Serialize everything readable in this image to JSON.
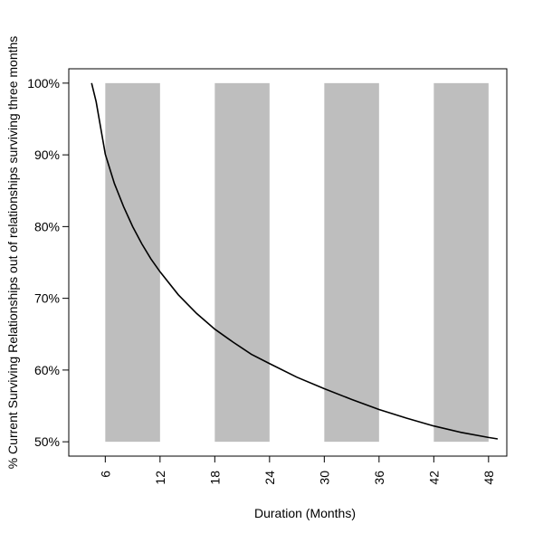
{
  "chart_data": {
    "type": "line",
    "title": "",
    "xlabel": "Duration (Months)",
    "ylabel": "% Current Surviving Relationships out of relationships surviving three months",
    "xlim": [
      2,
      50
    ],
    "ylim": [
      48,
      102
    ],
    "x_ticks": [
      6,
      12,
      18,
      24,
      30,
      36,
      42,
      48
    ],
    "y_ticks": [
      50,
      60,
      70,
      80,
      90,
      100
    ],
    "y_tick_labels": [
      "50%",
      "60%",
      "70%",
      "80%",
      "90%",
      "100%"
    ],
    "shaded_bands": [
      [
        6,
        12
      ],
      [
        18,
        24
      ],
      [
        30,
        36
      ],
      [
        42,
        48
      ]
    ],
    "shaded_band_range": [
      50,
      100
    ],
    "series": [
      {
        "x": [
          4.5,
          5,
          6,
          7,
          8,
          9,
          10,
          11,
          12,
          14,
          16,
          18,
          20,
          22,
          24,
          27,
          30,
          33,
          36,
          39,
          42,
          45,
          48,
          49
        ],
        "y": [
          100,
          97.4,
          90.1,
          86.0,
          82.8,
          80.0,
          77.6,
          75.5,
          73.7,
          70.5,
          67.9,
          65.7,
          63.9,
          62.2,
          60.9,
          59.0,
          57.4,
          55.9,
          54.5,
          53.3,
          52.2,
          51.3,
          50.6,
          50.4
        ]
      }
    ],
    "colors": {
      "band": "#bebebe",
      "line": "#000000",
      "frame": "#000000"
    },
    "grid": false,
    "legend": "none"
  }
}
